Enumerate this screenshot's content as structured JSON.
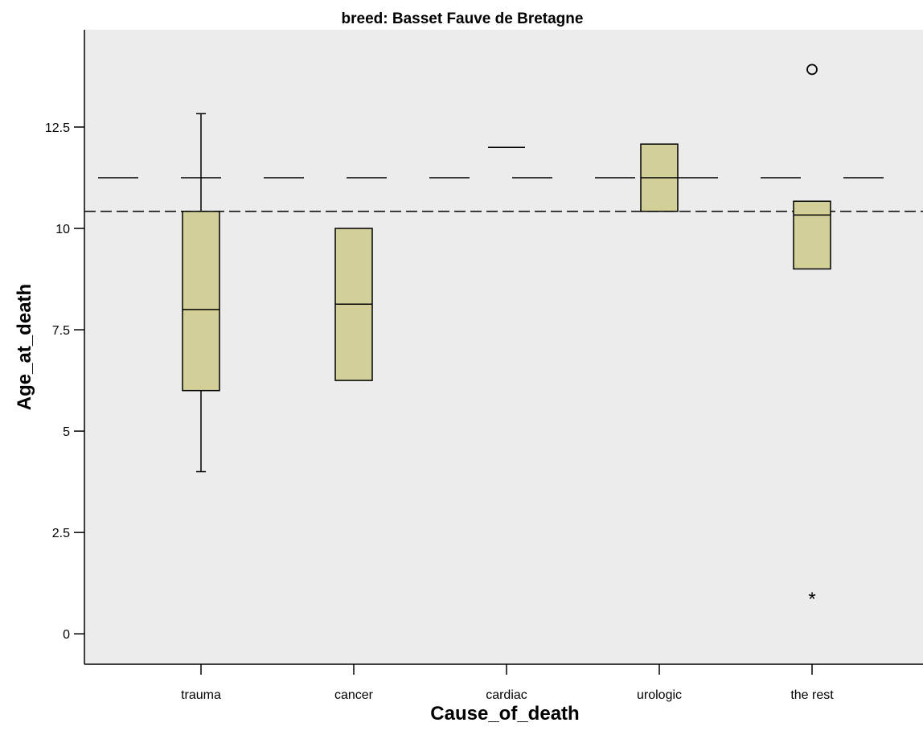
{
  "chart_data": {
    "type": "boxplot",
    "title": "breed: Basset Fauve de Bretagne",
    "xlabel": "Cause_of_death",
    "ylabel": "Age_at_death",
    "categories": [
      "trauma",
      "cancer",
      "cardiac",
      "urologic",
      "the rest"
    ],
    "yticks": [
      0,
      2.5,
      5,
      7.5,
      10,
      12.5
    ],
    "ytick_labels": [
      "0",
      "2.5",
      "5",
      "7.5",
      "10",
      "12.5"
    ],
    "ylim": [
      -0.75,
      14.9
    ],
    "box_color": "#d2cf98",
    "plot_background": "#ececec",
    "reference_lines": [
      {
        "value": 11.25,
        "style": "long-dash"
      },
      {
        "value": 10.42,
        "style": "short-dash"
      }
    ],
    "boxes": [
      {
        "category": "trauma",
        "whisker_low": 4.0,
        "q1": 6.0,
        "median": 8.0,
        "q3": 10.42,
        "whisker_high": 12.83
      },
      {
        "category": "cancer",
        "whisker_low": 6.25,
        "q1": 6.25,
        "median": 8.13,
        "q3": 10.0,
        "whisker_high": 10.0
      },
      {
        "category": "cardiac",
        "whisker_low": 12.0,
        "q1": 12.0,
        "median": 12.0,
        "q3": 12.0,
        "whisker_high": 12.0
      },
      {
        "category": "urologic",
        "whisker_low": 10.42,
        "q1": 10.42,
        "median": 11.25,
        "q3": 12.08,
        "whisker_high": 12.08
      },
      {
        "category": "the rest",
        "whisker_low": 9.0,
        "q1": 9.0,
        "median": 10.33,
        "q3": 10.67,
        "whisker_high": 10.67
      }
    ],
    "outliers": [
      {
        "category": "the rest",
        "value": 13.92,
        "marker": "circle"
      },
      {
        "category": "the rest",
        "value": 0.92,
        "marker": "star"
      }
    ]
  }
}
